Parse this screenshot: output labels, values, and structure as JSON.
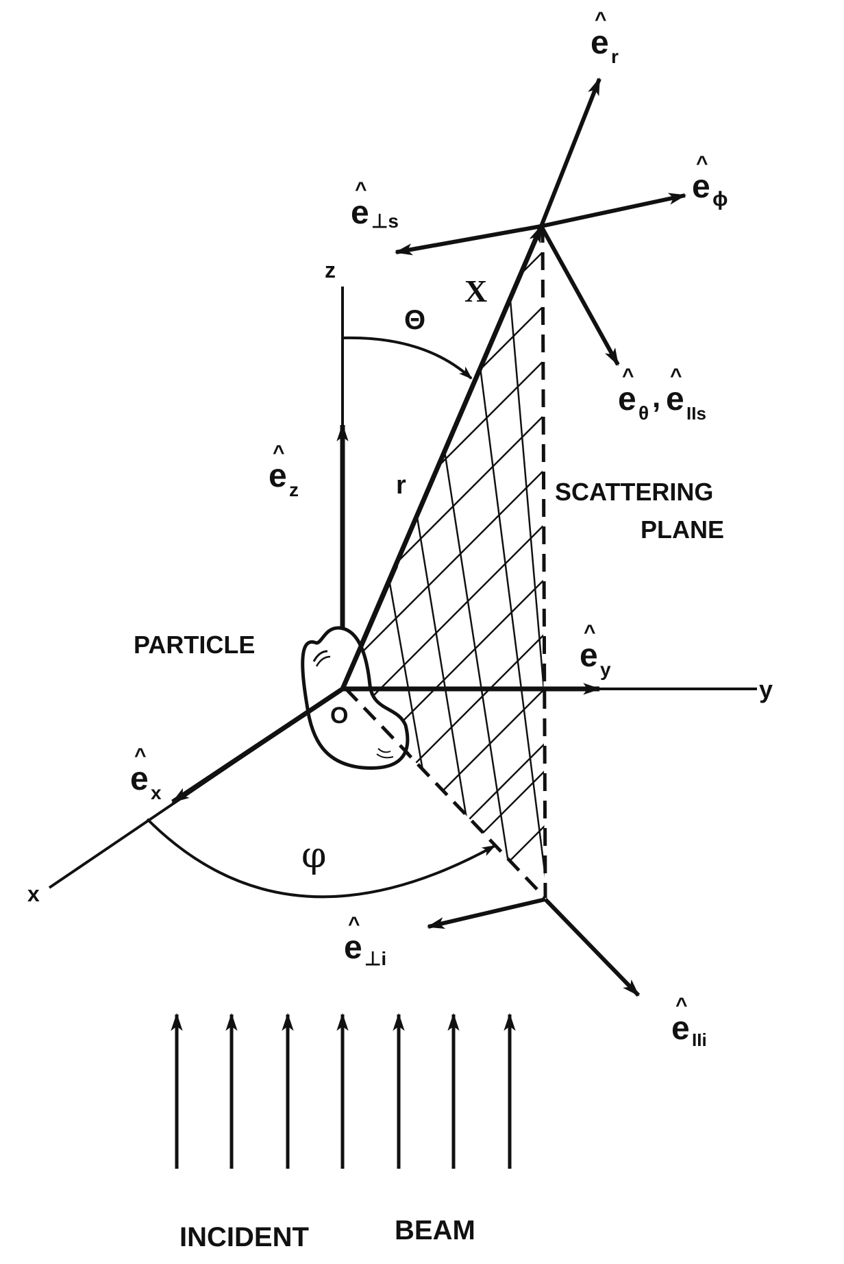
{
  "axes": {
    "x": "x",
    "y": "y",
    "z": "z"
  },
  "origin": "O",
  "point": "X",
  "radius": "r",
  "angles": {
    "theta": "Θ",
    "phi": "φ"
  },
  "particle_label": "PARTICLE",
  "plane_label": {
    "line1": "SCATTERING",
    "line2": "PLANE"
  },
  "beam_label": {
    "word1": "INCIDENT",
    "word2": "BEAM"
  },
  "unit_vectors": {
    "e": "e",
    "hat": "^",
    "r": "r",
    "phi": "ϕ",
    "theta": "θ",
    "par_s": "IIs",
    "perp_s": "⊥s",
    "perp_i": "⊥i",
    "par_i": "IIi",
    "x": "x",
    "y": "y",
    "z": "z",
    "comma": ","
  },
  "colors": {
    "ink": "#111111",
    "background": "#ffffff"
  }
}
